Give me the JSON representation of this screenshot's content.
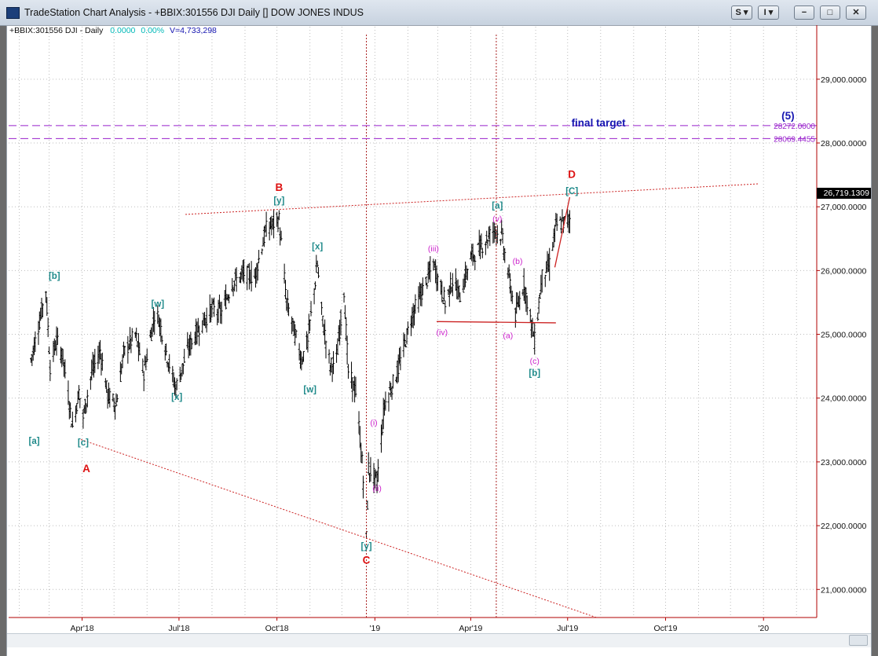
{
  "window": {
    "title": "TradeStation Chart Analysis - +BBIX:301556 DJI Daily [] DOW JONES INDUS",
    "buttons": [
      {
        "name": "s-menu-button",
        "label": "S ▾"
      },
      {
        "name": "i-menu-button",
        "label": "I ▾"
      },
      {
        "name": "minimize-button",
        "label": "−"
      },
      {
        "name": "maximize-button",
        "label": "□"
      },
      {
        "name": "close-button",
        "label": "✕"
      }
    ]
  },
  "info_line": {
    "symbol": "+BBIX:301556 DJI - Daily",
    "change": "0.0000",
    "change_pct": "0.00%",
    "volume": "V=4,733,298"
  },
  "last_price": "26,719.1309",
  "colors": {
    "label_teal": "#1f8a8a",
    "label_red": "#dd1111",
    "label_magenta": "#cc22cc",
    "label_blue": "#1515b0",
    "target_purple": "#9922cc",
    "grid": "#bdbdbd",
    "bars": "#000000",
    "axis_red": "#b00000"
  },
  "chart_data": {
    "type": "ohlc",
    "title": "DOW JONES INDUS",
    "x_tick_labels": [
      "Apr'18",
      "Jul'18",
      "Oct'18",
      "'19",
      "Apr'19",
      "Jul'19",
      "Oct'19",
      "'20"
    ],
    "y_tick_labels": [
      "21,000.0000",
      "22,000.0000",
      "23,000.0000",
      "24,000.0000",
      "25,000.0000",
      "26,000.0000",
      "27,000.0000",
      "28,000.0000",
      "29,000.0000"
    ],
    "y_ticks": [
      21000,
      22000,
      23000,
      24000,
      25000,
      26000,
      27000,
      28000,
      29000
    ],
    "ylim": [
      20560,
      29700
    ],
    "grid": true,
    "price_path": [
      [
        "2018-02-12",
        24600
      ],
      [
        "2018-02-20",
        25200
      ],
      [
        "2018-02-26",
        25700
      ],
      [
        "2018-03-02",
        24500
      ],
      [
        "2018-03-08",
        24900
      ],
      [
        "2018-03-14",
        24650
      ],
      [
        "2018-03-23",
        23550
      ],
      [
        "2018-03-29",
        24100
      ],
      [
        "2018-04-02",
        23700
      ],
      [
        "2018-04-10",
        24400
      ],
      [
        "2018-04-18",
        24750
      ],
      [
        "2018-04-25",
        24050
      ],
      [
        "2018-05-03",
        23900
      ],
      [
        "2018-05-10",
        24700
      ],
      [
        "2018-05-21",
        25000
      ],
      [
        "2018-05-29",
        24400
      ],
      [
        "2018-06-08",
        25300
      ],
      [
        "2018-06-12",
        25250
      ],
      [
        "2018-06-20",
        24650
      ],
      [
        "2018-06-28",
        24150
      ],
      [
        "2018-07-10",
        24800
      ],
      [
        "2018-07-20",
        25100
      ],
      [
        "2018-08-01",
        25400
      ],
      [
        "2018-08-10",
        25350
      ],
      [
        "2018-08-20",
        25800
      ],
      [
        "2018-08-31",
        25950
      ],
      [
        "2018-09-10",
        25900
      ],
      [
        "2018-09-21",
        26650
      ],
      [
        "2018-10-03",
        26800
      ],
      [
        "2018-10-10",
        25500
      ],
      [
        "2018-10-15",
        25200
      ],
      [
        "2018-10-24",
        24600
      ],
      [
        "2018-10-30",
        24900
      ],
      [
        "2018-11-08",
        26100
      ],
      [
        "2018-11-13",
        25200
      ],
      [
        "2018-11-20",
        24500
      ],
      [
        "2018-11-26",
        24600
      ],
      [
        "2018-12-03",
        25700
      ],
      [
        "2018-12-07",
        24400
      ],
      [
        "2018-12-14",
        24100
      ],
      [
        "2018-12-20",
        23000
      ],
      [
        "2018-12-24",
        21800
      ],
      [
        "2018-12-26",
        22900
      ],
      [
        "2019-01-03",
        22700
      ],
      [
        "2019-01-10",
        23900
      ],
      [
        "2019-01-22",
        24400
      ],
      [
        "2019-02-05",
        25300
      ],
      [
        "2019-02-25",
        26100
      ],
      [
        "2019-03-08",
        25500
      ],
      [
        "2019-03-15",
        25850
      ],
      [
        "2019-03-22",
        25600
      ],
      [
        "2019-04-01",
        26200
      ],
      [
        "2019-04-12",
        26400
      ],
      [
        "2019-04-23",
        26650
      ],
      [
        "2019-04-30",
        26550
      ],
      [
        "2019-05-13",
        25300
      ],
      [
        "2019-05-21",
        25800
      ],
      [
        "2019-05-31",
        24900
      ],
      [
        "2019-06-07",
        25900
      ],
      [
        "2019-06-14",
        26100
      ],
      [
        "2019-06-20",
        26700
      ],
      [
        "2019-07-03",
        26800
      ]
    ],
    "lines": [
      {
        "name": "upper-dotted-trendline",
        "color": "#cc2222",
        "style": "dotted",
        "points": [
          [
            "2018-07-07",
            26880
          ],
          [
            "2019-12-28",
            27360
          ]
        ]
      },
      {
        "name": "lower-dotted-trendline",
        "color": "#cc2222",
        "style": "dotted",
        "points": [
          [
            "2018-03-31",
            23350
          ],
          [
            "2019-07-28",
            20560
          ]
        ]
      },
      {
        "name": "neckline",
        "color": "#cc2222",
        "style": "solid",
        "points": [
          [
            "2019-02-28",
            25200
          ],
          [
            "2019-06-20",
            25180
          ]
        ]
      },
      {
        "name": "projection-line",
        "color": "#cc2222",
        "style": "solid",
        "points": [
          [
            "2019-06-19",
            26050
          ],
          [
            "2019-07-03",
            27150
          ]
        ]
      },
      {
        "name": "vline-dec-2018",
        "color": "#aa2222",
        "style": "dotted",
        "points": [
          [
            "2018-12-24",
            20560
          ],
          [
            "2018-12-24",
            29700
          ]
        ]
      },
      {
        "name": "vline-may-2019",
        "color": "#aa2222",
        "style": "dotted",
        "points": [
          [
            "2019-04-25",
            20560
          ],
          [
            "2019-04-25",
            29700
          ]
        ]
      },
      {
        "name": "target-line-upper",
        "color": "#9922cc",
        "style": "dashed",
        "points": [
          [
            "2018-01-22",
            28272.0
          ],
          [
            "2020-02-20",
            28272.0
          ]
        ]
      },
      {
        "name": "target-line-lower",
        "color": "#9922cc",
        "style": "dashed",
        "points": [
          [
            "2018-01-22",
            28069.4455
          ],
          [
            "2020-02-20",
            28069.4455
          ]
        ]
      }
    ],
    "target_levels": [
      {
        "label": "28272.0000",
        "value": 28272.0
      },
      {
        "label": "28069.4455",
        "value": 28069.4455
      }
    ],
    "annotations": [
      {
        "text": "[a]",
        "x": "2018-02-15",
        "y": 23330,
        "color": "teal"
      },
      {
        "text": "[b]",
        "x": "2018-03-06",
        "y": 25920,
        "color": "teal"
      },
      {
        "text": "[c]",
        "x": "2018-04-02",
        "y": 23310,
        "color": "teal"
      },
      {
        "text": "A",
        "x": "2018-04-05",
        "y": 22890,
        "color": "red"
      },
      {
        "text": "[w]",
        "x": "2018-06-11",
        "y": 25480,
        "color": "teal"
      },
      {
        "text": "[x]",
        "x": "2018-06-29",
        "y": 24020,
        "color": "teal"
      },
      {
        "text": "B",
        "x": "2018-10-03",
        "y": 27300,
        "color": "red"
      },
      {
        "text": "[y]",
        "x": "2018-10-03",
        "y": 27100,
        "color": "teal"
      },
      {
        "text": "[x]",
        "x": "2018-11-08",
        "y": 26380,
        "color": "teal"
      },
      {
        "text": "[w]",
        "x": "2018-11-01",
        "y": 24140,
        "color": "teal"
      },
      {
        "text": "(i)",
        "x": "2018-12-31",
        "y": 23620,
        "color": "magenta"
      },
      {
        "text": "(ii)",
        "x": "2019-01-03",
        "y": 22590,
        "color": "magenta"
      },
      {
        "text": "[y]",
        "x": "2018-12-24",
        "y": 21680,
        "color": "teal"
      },
      {
        "text": "C",
        "x": "2018-12-24",
        "y": 21450,
        "color": "red"
      },
      {
        "text": "(iii)",
        "x": "2019-02-25",
        "y": 26350,
        "color": "magenta"
      },
      {
        "text": "(iv)",
        "x": "2019-03-05",
        "y": 25040,
        "color": "magenta"
      },
      {
        "text": "[a]",
        "x": "2019-04-26",
        "y": 27020,
        "color": "teal"
      },
      {
        "text": "(v)",
        "x": "2019-04-26",
        "y": 26820,
        "color": "magenta"
      },
      {
        "text": "(b)",
        "x": "2019-05-15",
        "y": 26150,
        "color": "magenta"
      },
      {
        "text": "(a)",
        "x": "2019-05-06",
        "y": 24990,
        "color": "magenta"
      },
      {
        "text": "(c)",
        "x": "2019-05-31",
        "y": 24590,
        "color": "magenta"
      },
      {
        "text": "[b]",
        "x": "2019-05-31",
        "y": 24400,
        "color": "teal"
      },
      {
        "text": "D",
        "x": "2019-07-05",
        "y": 27500,
        "color": "red"
      },
      {
        "text": "[C]",
        "x": "2019-07-05",
        "y": 27250,
        "color": "teal"
      },
      {
        "text": "final target",
        "x": "2019-07-30",
        "y": 28310,
        "color": "blue"
      },
      {
        "text": "(5)",
        "x": "2020-01-24",
        "y": 28420,
        "color": "blue"
      }
    ]
  }
}
